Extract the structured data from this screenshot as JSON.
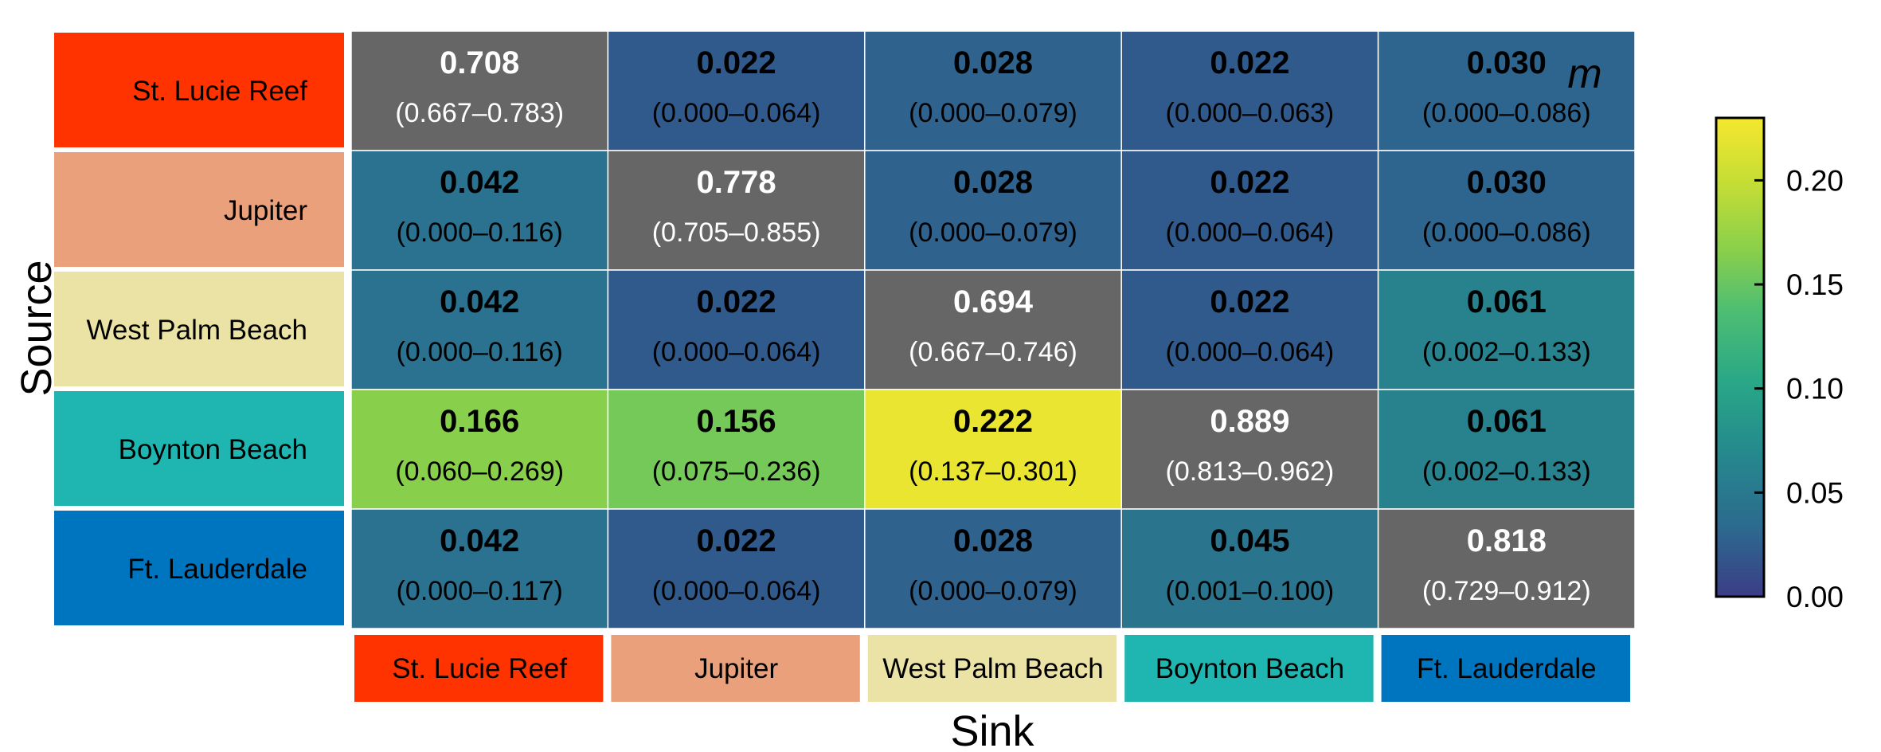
{
  "chart_data": {
    "type": "heatmap",
    "xlabel": "Sink",
    "ylabel": "Source",
    "rows": [
      "St. Lucie Reef",
      "Jupiter",
      "West Palm Beach",
      "Boynton Beach",
      "Ft. Lauderdale"
    ],
    "columns": [
      "St. Lucie Reef",
      "Jupiter",
      "West Palm Beach",
      "Boynton Beach",
      "Ft. Lauderdale"
    ],
    "values": [
      [
        0.708,
        0.022,
        0.028,
        0.022,
        0.03
      ],
      [
        0.042,
        0.778,
        0.028,
        0.022,
        0.03
      ],
      [
        0.042,
        0.022,
        0.694,
        0.022,
        0.061
      ],
      [
        0.166,
        0.156,
        0.222,
        0.889,
        0.061
      ],
      [
        0.042,
        0.022,
        0.028,
        0.045,
        0.818
      ]
    ],
    "value_labels": [
      [
        "0.708",
        "0.022",
        "0.028",
        "0.022",
        "0.030"
      ],
      [
        "0.042",
        "0.778",
        "0.028",
        "0.022",
        "0.030"
      ],
      [
        "0.042",
        "0.022",
        "0.694",
        "0.022",
        "0.061"
      ],
      [
        "0.166",
        "0.156",
        "0.222",
        "0.889",
        "0.061"
      ],
      [
        "0.042",
        "0.022",
        "0.028",
        "0.045",
        "0.818"
      ]
    ],
    "intervals": [
      [
        "(0.667–0.783)",
        "(0.000–0.064)",
        "(0.000–0.079)",
        "(0.000–0.063)",
        "(0.000–0.086)"
      ],
      [
        "(0.000–0.116)",
        "(0.705–0.855)",
        "(0.000–0.079)",
        "(0.000–0.064)",
        "(0.000–0.086)"
      ],
      [
        "(0.000–0.116)",
        "(0.000–0.064)",
        "(0.667–0.746)",
        "(0.000–0.064)",
        "(0.002–0.133)"
      ],
      [
        "(0.060–0.269)",
        "(0.075–0.236)",
        "(0.137–0.301)",
        "(0.813–0.962)",
        "(0.002–0.133)"
      ],
      [
        "(0.000–0.117)",
        "(0.000–0.064)",
        "(0.000–0.079)",
        "(0.001–0.100)",
        "(0.729–0.912)"
      ]
    ],
    "diagonal_color": "#666666",
    "site_colors": [
      "#ff3300",
      "#e9a07b",
      "#ebe3a5",
      "#1fb5b0",
      "#0075bf"
    ],
    "colorbar": {
      "label": "m",
      "range": [
        0,
        0.23
      ],
      "ticks": [
        0.0,
        0.05,
        0.1,
        0.15,
        0.2
      ],
      "tick_labels": [
        "0.00",
        "0.05",
        "0.10",
        "0.15",
        "0.20"
      ],
      "colormap": "viridis"
    },
    "grid": true
  }
}
